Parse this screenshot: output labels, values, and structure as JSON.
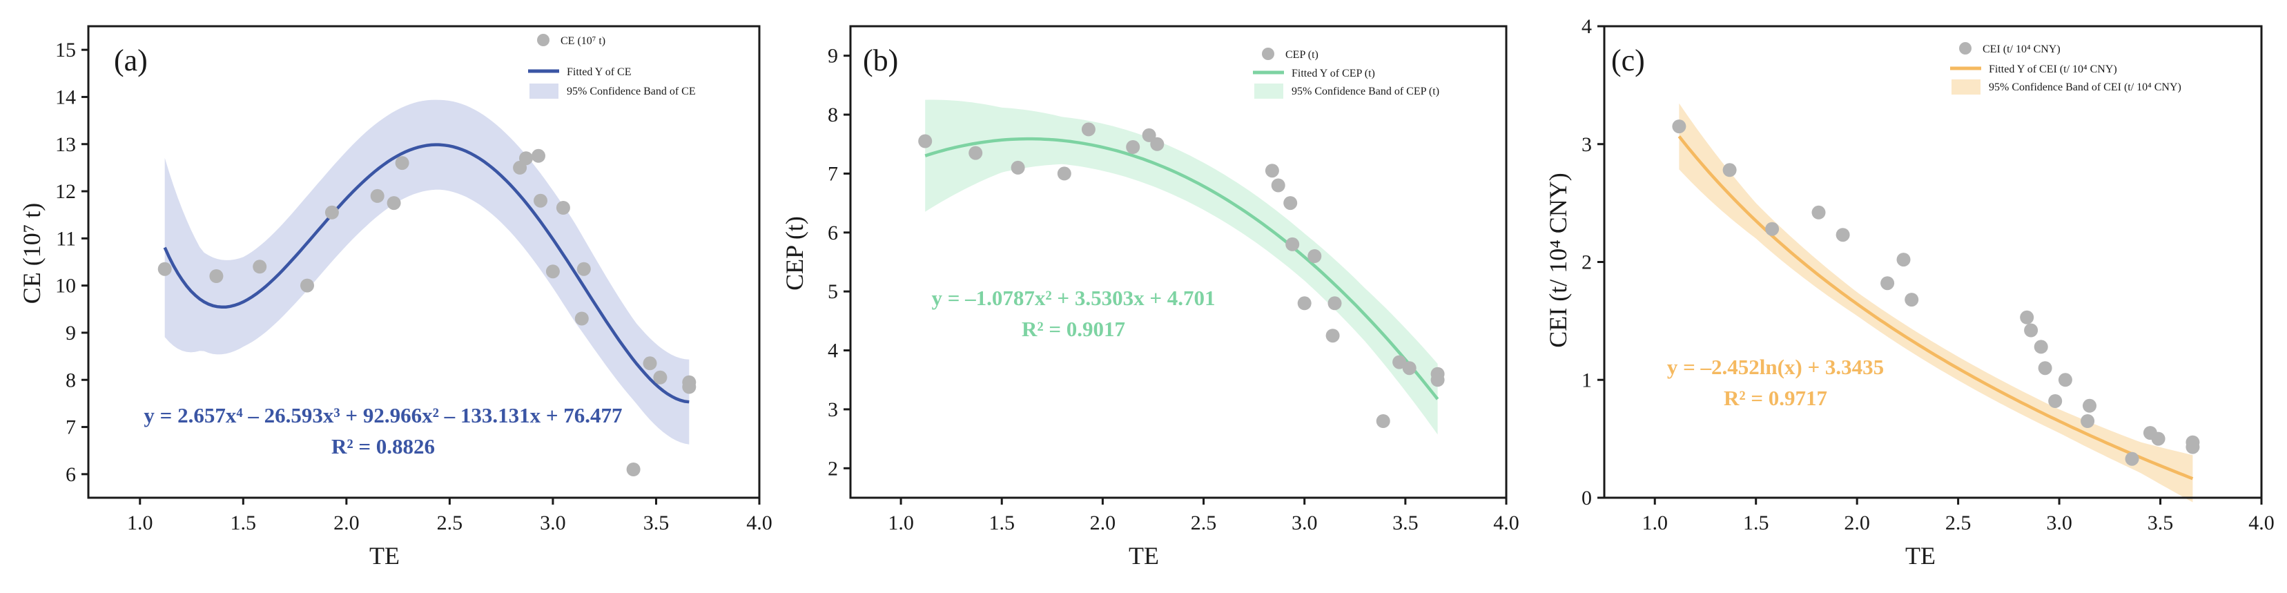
{
  "chart_data": [
    {
      "type": "scatter",
      "panel": "(a)",
      "xlabel": "TE",
      "ylabel": "CE (10⁷ t)",
      "xlim": [
        0.75,
        4.0
      ],
      "ylim": [
        5.5,
        15.5
      ],
      "xticks": [
        1.0,
        1.5,
        2.0,
        2.5,
        3.0,
        3.5,
        4.0
      ],
      "yticks": [
        6,
        7,
        8,
        9,
        10,
        11,
        12,
        13,
        14,
        15
      ],
      "xtick_labels": [
        "1.0",
        "1.5",
        "2.0",
        "2.5",
        "3.0",
        "3.5",
        "4.0"
      ],
      "ytick_labels": [
        "6",
        "7",
        "8",
        "9",
        "10",
        "11",
        "12",
        "13",
        "14",
        "15"
      ],
      "color": "#3a55a4",
      "band_color": "#d8ddf0",
      "point_color": "#b3b3b3",
      "legend": [
        "CE (10⁷ t)",
        "Fitted Y of CE",
        "95% Confidence Band of CE"
      ],
      "equation": "y = 2.657x⁴ – 26.593x³ + 92.966x² – 133.131x + 76.477",
      "r2": "R² = 0.8826",
      "fit": {
        "kind": "poly",
        "coef": [
          2.657,
          -26.593,
          92.966,
          -133.131,
          76.477
        ],
        "xmin": 1.12,
        "xmax": 3.66
      },
      "band": {
        "x": [
          1.12,
          1.3,
          1.5,
          1.8,
          2.1,
          2.45,
          2.8,
          3.1,
          3.4,
          3.66
        ],
        "half_width": [
          1.9,
          1.05,
          0.95,
          1.0,
          1.0,
          0.95,
          1.0,
          1.05,
          0.85,
          0.9
        ]
      },
      "points": [
        [
          1.12,
          10.35
        ],
        [
          1.37,
          10.2
        ],
        [
          1.58,
          10.4
        ],
        [
          1.81,
          10.0
        ],
        [
          1.93,
          11.55
        ],
        [
          2.15,
          11.9
        ],
        [
          2.23,
          11.75
        ],
        [
          2.27,
          12.6
        ],
        [
          2.84,
          12.5
        ],
        [
          2.87,
          12.7
        ],
        [
          2.93,
          12.75
        ],
        [
          2.94,
          11.8
        ],
        [
          3.0,
          10.3
        ],
        [
          3.05,
          11.65
        ],
        [
          3.14,
          9.3
        ],
        [
          3.15,
          10.35
        ],
        [
          3.39,
          6.1
        ],
        [
          3.47,
          8.35
        ],
        [
          3.52,
          8.05
        ],
        [
          3.66,
          7.95
        ],
        [
          3.66,
          7.85
        ]
      ]
    },
    {
      "type": "scatter",
      "panel": "(b)",
      "xlabel": "TE",
      "ylabel": "CEP (t)",
      "xlim": [
        0.75,
        4.0
      ],
      "ylim": [
        1.5,
        9.5
      ],
      "xticks": [
        1.0,
        1.5,
        2.0,
        2.5,
        3.0,
        3.5,
        4.0
      ],
      "yticks": [
        2,
        3,
        4,
        5,
        6,
        7,
        8,
        9
      ],
      "xtick_labels": [
        "1.0",
        "1.5",
        "2.0",
        "2.5",
        "3.0",
        "3.5",
        "4.0"
      ],
      "ytick_labels": [
        "2",
        "3",
        "4",
        "5",
        "6",
        "7",
        "8",
        "9"
      ],
      "color": "#7dd3a2",
      "band_color": "#dcf5e6",
      "point_color": "#b3b3b3",
      "legend": [
        "CEP (t)",
        "Fitted Y of CEP (t)",
        "95% Confidence Band of CEP (t)"
      ],
      "equation": "y = –1.0787x² + 3.5303x + 4.701",
      "r2": "R² = 0.9017",
      "fit": {
        "kind": "poly",
        "coef": [
          -1.0787,
          3.5303,
          4.701
        ],
        "xmin": 1.12,
        "xmax": 3.66
      },
      "band": {
        "x": [
          1.12,
          1.5,
          1.8,
          2.2,
          2.6,
          3.0,
          3.3,
          3.66
        ],
        "half_width": [
          0.95,
          0.55,
          0.4,
          0.4,
          0.4,
          0.4,
          0.45,
          0.6
        ]
      },
      "points": [
        [
          1.12,
          7.55
        ],
        [
          1.37,
          7.35
        ],
        [
          1.58,
          7.1
        ],
        [
          1.81,
          7.0
        ],
        [
          1.93,
          7.75
        ],
        [
          2.15,
          7.45
        ],
        [
          2.23,
          7.65
        ],
        [
          2.27,
          7.5
        ],
        [
          2.84,
          7.05
        ],
        [
          2.87,
          6.8
        ],
        [
          2.93,
          6.5
        ],
        [
          2.94,
          5.8
        ],
        [
          3.0,
          4.8
        ],
        [
          3.05,
          5.6
        ],
        [
          3.14,
          4.25
        ],
        [
          3.15,
          4.8
        ],
        [
          3.39,
          2.8
        ],
        [
          3.47,
          3.8
        ],
        [
          3.52,
          3.7
        ],
        [
          3.66,
          3.6
        ],
        [
          3.66,
          3.5
        ]
      ]
    },
    {
      "type": "scatter",
      "panel": "(c)",
      "xlabel": "TE",
      "ylabel": "CEI (t/ 10⁴ CNY)",
      "xlim": [
        0.75,
        4.0
      ],
      "ylim": [
        0,
        4
      ],
      "xticks": [
        1.0,
        1.5,
        2.0,
        2.5,
        3.0,
        3.5,
        4.0
      ],
      "yticks": [
        0,
        1,
        2,
        3,
        4
      ],
      "xtick_labels": [
        "1.0",
        "1.5",
        "2.0",
        "2.5",
        "3.0",
        "3.5",
        "4.0"
      ],
      "ytick_labels": [
        "0",
        "1",
        "2",
        "3",
        "4"
      ],
      "color": "#f5b960",
      "band_color": "#fbe7c6",
      "point_color": "#b3b3b3",
      "legend": [
        "CEI (t/ 10⁴ CNY)",
        "Fitted Y of CEI (t/ 10⁴ CNY)",
        "95% Confidence Band of CEI (t/ 10⁴ CNY)"
      ],
      "equation": "y = –2.452ln(x) + 3.3435",
      "r2": "R² = 0.9717",
      "fit": {
        "kind": "log",
        "a": -2.452,
        "b": 3.3435,
        "xmin": 1.12,
        "xmax": 3.66
      },
      "band": {
        "x": [
          1.12,
          1.5,
          2.0,
          2.5,
          3.0,
          3.4,
          3.66
        ],
        "half_width": [
          0.28,
          0.15,
          0.1,
          0.1,
          0.1,
          0.13,
          0.2
        ]
      },
      "points": [
        [
          1.12,
          3.15
        ],
        [
          1.37,
          2.78
        ],
        [
          1.58,
          2.28
        ],
        [
          1.81,
          2.42
        ],
        [
          1.93,
          2.23
        ],
        [
          2.15,
          1.82
        ],
        [
          2.23,
          2.02
        ],
        [
          2.27,
          1.68
        ],
        [
          2.84,
          1.53
        ],
        [
          2.86,
          1.42
        ],
        [
          2.91,
          1.28
        ],
        [
          2.93,
          1.1
        ],
        [
          2.98,
          0.82
        ],
        [
          3.03,
          1.0
        ],
        [
          3.14,
          0.65
        ],
        [
          3.15,
          0.78
        ],
        [
          3.36,
          0.33
        ],
        [
          3.45,
          0.55
        ],
        [
          3.49,
          0.5
        ],
        [
          3.66,
          0.47
        ],
        [
          3.66,
          0.43
        ]
      ]
    }
  ]
}
